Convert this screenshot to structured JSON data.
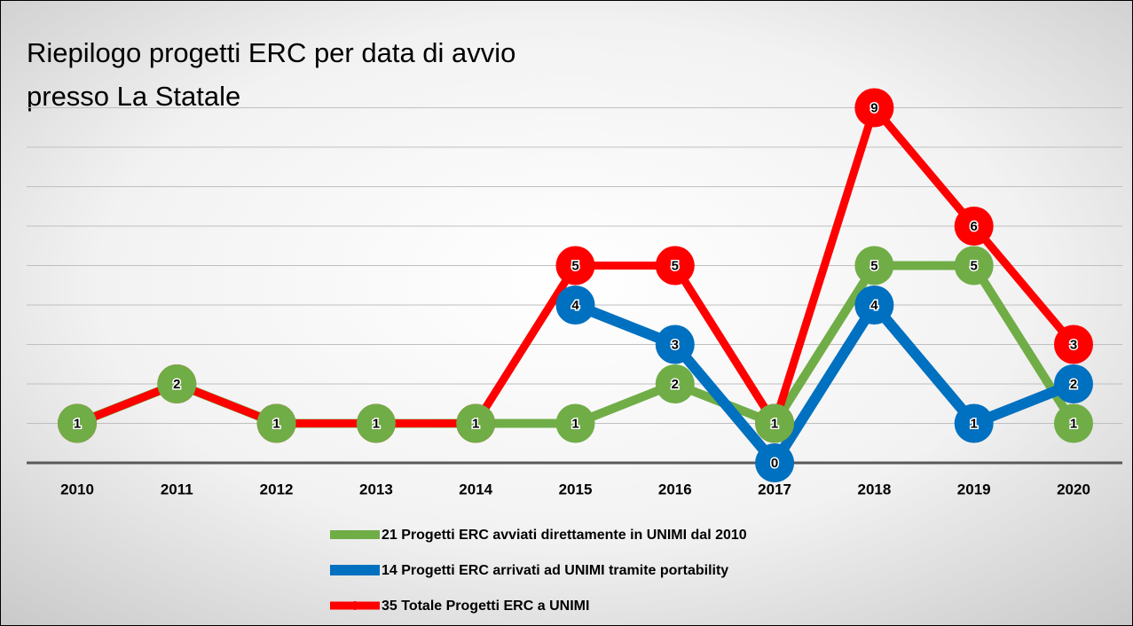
{
  "chart_data": {
    "type": "line",
    "title": "Riepilogo progetti ERC per data di avvio",
    "subtitle": "presso La Statale",
    "categories": [
      "2010",
      "2011",
      "2012",
      "2013",
      "2014",
      "2015",
      "2016",
      "2017",
      "2018",
      "2019",
      "2020"
    ],
    "series": [
      {
        "name": "21 Progetti ERC avviati direttamente in UNIMI dal 2010",
        "color": "#70ad47",
        "values": [
          1,
          2,
          1,
          1,
          1,
          1,
          2,
          1,
          5,
          5,
          1
        ]
      },
      {
        "name": "14 Progetti ERC arrivati ad UNIMI tramite portability",
        "color": "#0070c0",
        "values": [
          null,
          null,
          null,
          null,
          null,
          4,
          3,
          0,
          4,
          1,
          2
        ]
      },
      {
        "name": "35 Totale Progetti ERC a UNIMI",
        "color": "#ff0000",
        "values": [
          1,
          2,
          1,
          1,
          1,
          5,
          5,
          1,
          9,
          6,
          3
        ]
      }
    ],
    "ylim": [
      0,
      9
    ],
    "yticks": [
      0,
      1,
      2,
      3,
      4,
      5,
      6,
      7,
      8,
      9
    ],
    "grid": true,
    "legend": "bottom"
  }
}
